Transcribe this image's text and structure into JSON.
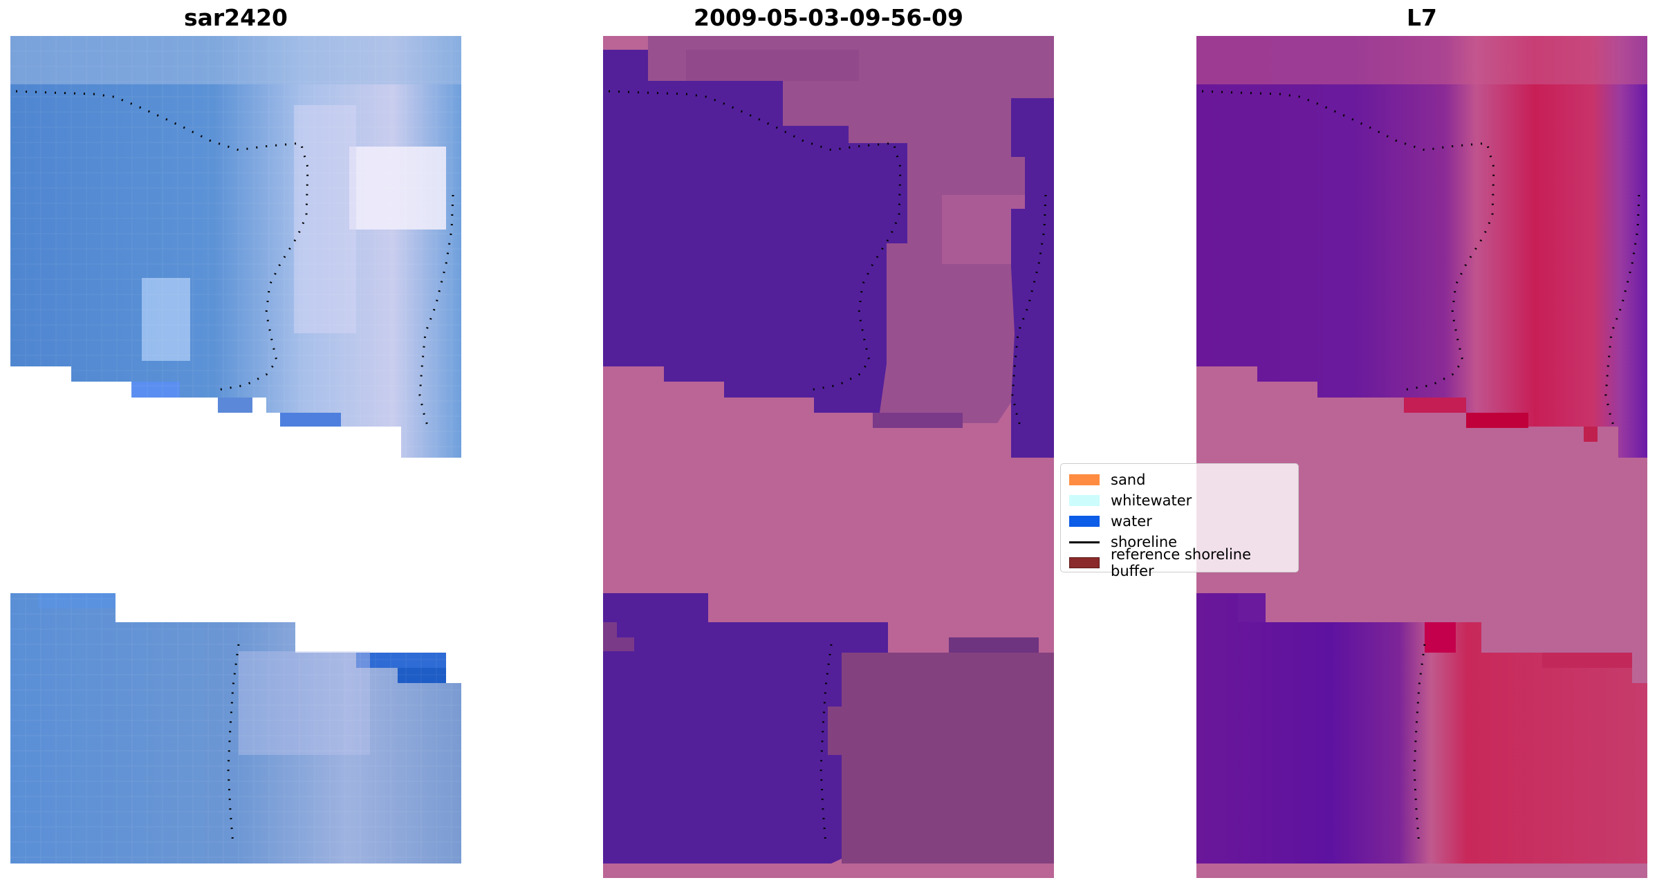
{
  "panels": [
    {
      "title": "sar2420"
    },
    {
      "title": "2009-05-03-09-56-09"
    },
    {
      "title": "L7"
    }
  ],
  "legend": {
    "items": [
      {
        "label": "sand",
        "color": "#ff8c40"
      },
      {
        "label": "whitewater",
        "color": "#cdfcfc"
      },
      {
        "label": "water",
        "color": "#0b5ce6"
      },
      {
        "label": "shoreline",
        "color": "#000000"
      },
      {
        "label": "reference shoreline buffer",
        "color": "#8b2a2a"
      }
    ]
  },
  "colors": {
    "rgb_water_blue": "#4f86d0",
    "rgb_light_blue": "#9db9e4",
    "rgb_white_haze": "#d8dcf2",
    "class_water_purple": "#53209a",
    "class_nodata_pink": "#ba6596",
    "class_mauve": "#99508f",
    "index_purple": "#6a1799",
    "index_red": "#c81e56"
  }
}
